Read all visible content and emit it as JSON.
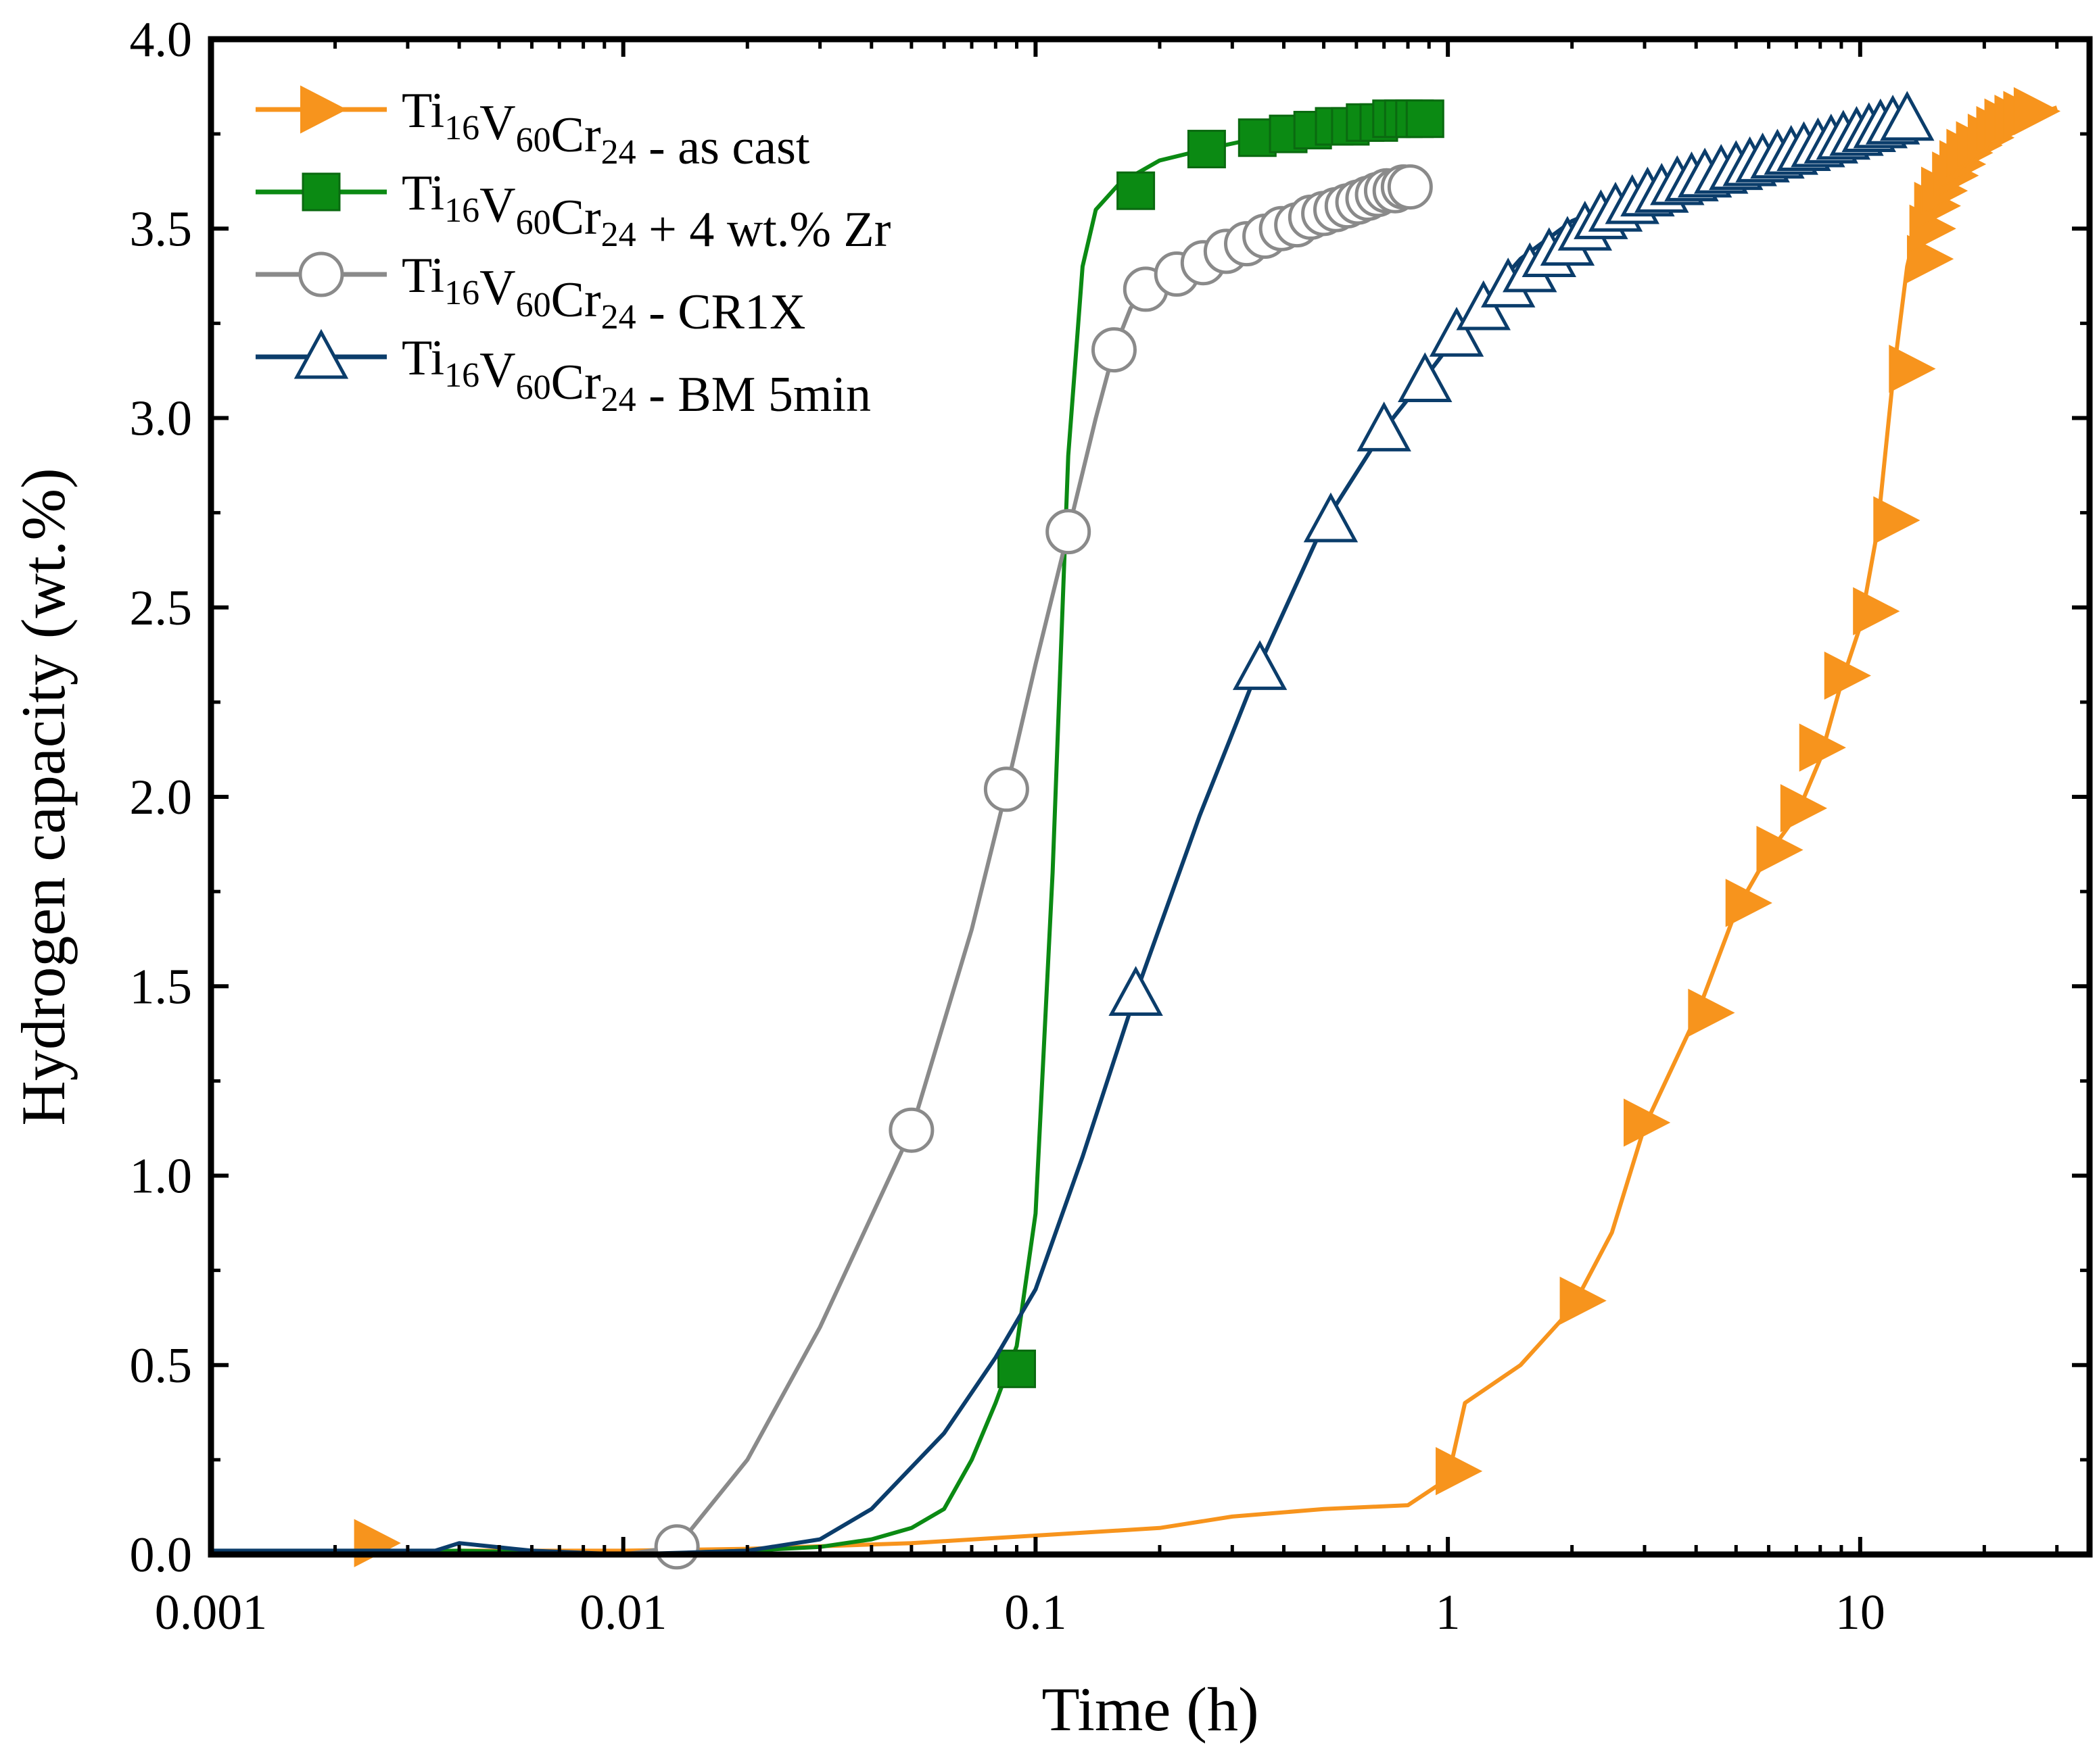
{
  "chart_data": {
    "type": "line",
    "xscale": "log",
    "xlabel": "Time (h)",
    "ylabel": "Hydrogen capacity (wt.%)",
    "xlim": [
      0.001,
      36
    ],
    "ylim": [
      0.0,
      4.0
    ],
    "grid": false,
    "legend_position": "top-left",
    "x_tick_labels": [
      "0.001",
      "0.01",
      "0.1",
      "1",
      "10"
    ],
    "y_tick_labels": [
      "0.0",
      "0.5",
      "1.0",
      "1.5",
      "2.0",
      "2.5",
      "3.0",
      "3.5",
      "4.0"
    ],
    "series": [
      {
        "name": "Ti16V60Cr24 - as cast",
        "legend": {
          "base": "Ti",
          "s1": "16",
          "m": "V",
          "s2": "60",
          "m2": "Cr",
          "s3": "24",
          "suffix": " - as cast"
        },
        "color": "#f7941d",
        "marker": "filled-right-triangle",
        "x": [
          0.001,
          0.002,
          0.004,
          0.01,
          0.02,
          0.05,
          0.1,
          0.2,
          0.3,
          0.5,
          0.8,
          1.0,
          1.1,
          1.5,
          2.0,
          2.5,
          3.0,
          4.0,
          5.0,
          6.0,
          7.0,
          8.0,
          9.0,
          10.0,
          11.0,
          12.0,
          13.0,
          14.0,
          15.0,
          17.0,
          20.0,
          25.0,
          30.0
        ],
        "y": [
          0.0,
          0.0,
          0.01,
          0.01,
          0.015,
          0.03,
          0.05,
          0.07,
          0.1,
          0.12,
          0.13,
          0.2,
          0.4,
          0.5,
          0.65,
          0.85,
          1.13,
          1.42,
          1.7,
          1.85,
          1.95,
          2.1,
          2.3,
          2.45,
          2.7,
          3.1,
          3.4,
          3.55,
          3.6,
          3.68,
          3.75,
          3.79,
          3.82
        ],
        "marker_x": [
          0.0025,
          1.05,
          2.1,
          3.0,
          4.3,
          5.3,
          6.3,
          7.2,
          8.0,
          9.2,
          10.8,
          12.1,
          13.2,
          14.6,
          14.8,
          15.2,
          15.8,
          16.8,
          17.5,
          18.2,
          19.2,
          20.5,
          21.5,
          22.5,
          23.8,
          25.0,
          26.5
        ],
        "marker_y": [
          0.03,
          0.22,
          0.67,
          1.14,
          1.43,
          1.72,
          1.86,
          1.97,
          2.13,
          2.32,
          2.49,
          2.73,
          3.13,
          3.42,
          3.5,
          3.56,
          3.6,
          3.64,
          3.67,
          3.7,
          3.72,
          3.74,
          3.76,
          3.78,
          3.79,
          3.8,
          3.81
        ]
      },
      {
        "name": "Ti16V60Cr24 + 4 wt.% Zr",
        "legend": {
          "base": "Ti",
          "s1": "16",
          "m": "V",
          "s2": "60",
          "m2": "Cr",
          "s3": "24",
          "suffix": " + 4 wt.% Zr"
        },
        "color": "#0b8a13",
        "marker": "filled-square",
        "x": [
          0.001,
          0.004,
          0.01,
          0.02,
          0.03,
          0.04,
          0.05,
          0.06,
          0.07,
          0.08,
          0.09,
          0.1,
          0.11,
          0.12,
          0.13,
          0.14,
          0.16,
          0.2,
          0.26,
          0.35,
          0.5,
          0.7,
          0.9
        ],
        "y": [
          0.0,
          0.01,
          0.0,
          0.01,
          0.02,
          0.04,
          0.07,
          0.12,
          0.25,
          0.4,
          0.55,
          0.9,
          1.8,
          2.9,
          3.4,
          3.55,
          3.62,
          3.68,
          3.71,
          3.74,
          3.76,
          3.78,
          3.79
        ],
        "marker_x": [
          0.09,
          0.175,
          0.26,
          0.345,
          0.41,
          0.47,
          0.53,
          0.58,
          0.63,
          0.68,
          0.73,
          0.78,
          0.83,
          0.88
        ],
        "marker_y": [
          0.49,
          3.6,
          3.71,
          3.74,
          3.75,
          3.76,
          3.77,
          3.77,
          3.78,
          3.78,
          3.79,
          3.79,
          3.79,
          3.79
        ]
      },
      {
        "name": "Ti16V60Cr24 - CR1X",
        "legend": {
          "base": "Ti",
          "s1": "16",
          "m": "V",
          "s2": "60",
          "m2": "Cr",
          "s3": "24",
          "suffix": " - CR1X"
        },
        "color": "#8a8a8a",
        "marker": "open-circle",
        "x": [
          0.001,
          0.01,
          0.0135,
          0.02,
          0.03,
          0.05,
          0.07,
          0.085,
          0.1,
          0.12,
          0.14,
          0.155,
          0.17,
          0.185,
          0.22,
          0.3,
          0.4,
          0.5,
          0.6,
          0.7,
          0.8
        ],
        "y": [
          0.0,
          0.0,
          0.02,
          0.25,
          0.6,
          1.12,
          1.65,
          2.02,
          2.35,
          2.7,
          3.0,
          3.18,
          3.29,
          3.34,
          3.38,
          3.44,
          3.49,
          3.53,
          3.56,
          3.59,
          3.61
        ],
        "marker_x": [
          0.0135,
          0.05,
          0.085,
          0.12,
          0.155,
          0.185,
          0.22,
          0.255,
          0.29,
          0.325,
          0.36,
          0.395,
          0.43,
          0.465,
          0.5,
          0.535,
          0.57,
          0.605,
          0.64,
          0.675,
          0.71,
          0.745,
          0.78,
          0.81
        ],
        "marker_y": [
          0.02,
          1.12,
          2.02,
          2.7,
          3.18,
          3.34,
          3.38,
          3.41,
          3.44,
          3.46,
          3.48,
          3.5,
          3.51,
          3.53,
          3.54,
          3.55,
          3.56,
          3.57,
          3.58,
          3.59,
          3.6,
          3.6,
          3.61,
          3.61
        ]
      },
      {
        "name": "Ti16V60Cr24 - BM 5min",
        "legend": {
          "base": "Ti",
          "s1": "16",
          "m": "V",
          "s2": "60",
          "m2": "Cr",
          "s3": "24",
          "suffix": " - BM 5min"
        },
        "color": "#0b3d6b",
        "marker": "open-triangle-up",
        "x": [
          0.001,
          0.0035,
          0.004,
          0.006,
          0.01,
          0.02,
          0.03,
          0.04,
          0.06,
          0.08,
          0.1,
          0.13,
          0.175,
          0.25,
          0.35,
          0.5,
          0.7,
          0.9,
          1.2,
          1.5,
          2.0,
          3.0,
          5.0,
          8.0,
          13.0
        ],
        "y": [
          0.01,
          0.01,
          0.03,
          0.01,
          0.0,
          0.01,
          0.04,
          0.12,
          0.32,
          0.52,
          0.7,
          1.05,
          1.48,
          1.95,
          2.35,
          2.72,
          2.97,
          3.12,
          3.3,
          3.42,
          3.52,
          3.6,
          3.67,
          3.73,
          3.79
        ],
        "marker_x": [
          0.175,
          0.35,
          0.52,
          0.7,
          0.88,
          1.05,
          1.22,
          1.4,
          1.58,
          1.76,
          1.95,
          2.15,
          2.35,
          2.55,
          2.8,
          3.05,
          3.3,
          3.6,
          3.9,
          4.2,
          4.6,
          5.0,
          5.4,
          5.8,
          6.3,
          6.8,
          7.3,
          7.9,
          8.5,
          9.1,
          9.8,
          10.5,
          11.2,
          12.0,
          13.0
        ],
        "marker_y": [
          1.48,
          2.34,
          2.73,
          2.97,
          3.1,
          3.22,
          3.29,
          3.35,
          3.39,
          3.43,
          3.46,
          3.5,
          3.53,
          3.55,
          3.57,
          3.59,
          3.6,
          3.62,
          3.63,
          3.64,
          3.65,
          3.66,
          3.67,
          3.68,
          3.69,
          3.7,
          3.71,
          3.72,
          3.73,
          3.74,
          3.75,
          3.76,
          3.77,
          3.78,
          3.79
        ]
      }
    ]
  }
}
